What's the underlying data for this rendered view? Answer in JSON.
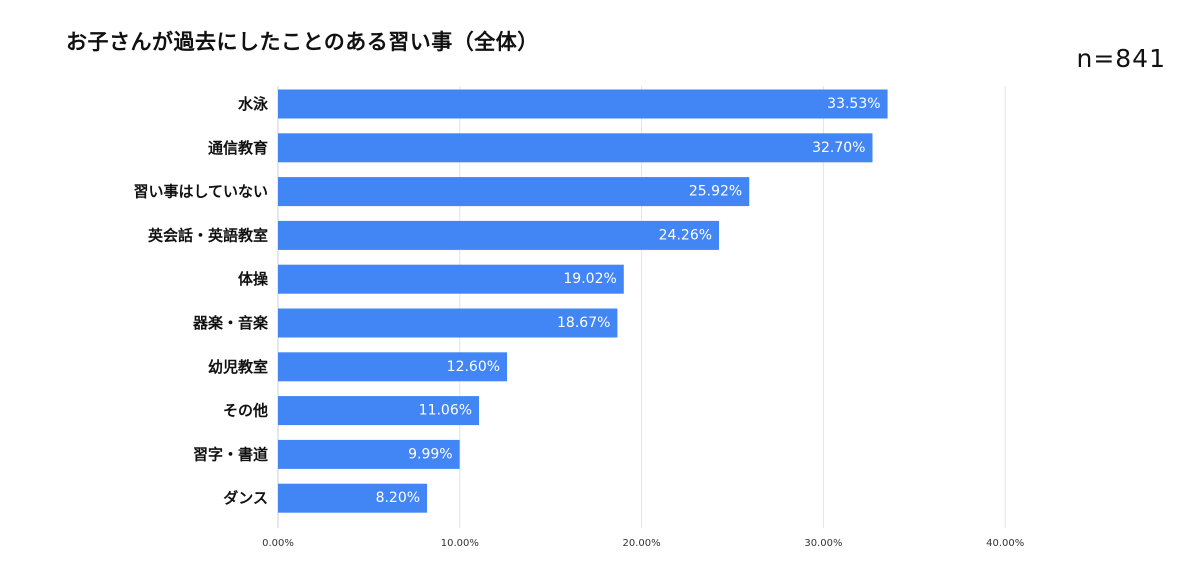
{
  "header": {
    "title": "お子さんが過去にしたことのある習い事（全体）",
    "sample_size": "n=841"
  },
  "colors": {
    "bar": "#4285f4",
    "grid": "#dde3f1",
    "value_text": "#ffffff",
    "label_text": "#111111"
  },
  "chart_data": {
    "type": "bar",
    "orientation": "horizontal",
    "title": "お子さんが過去にしたことのある習い事（全体）",
    "categories": [
      "水泳",
      "通信教育",
      "習い事はしていない",
      "英会話・英語教室",
      "体操",
      "器楽・音楽",
      "幼児教室",
      "その他",
      "習字・書道",
      "ダンス"
    ],
    "values": [
      33.53,
      32.7,
      25.92,
      24.26,
      19.02,
      18.67,
      12.6,
      11.06,
      9.99,
      8.2
    ],
    "value_labels": [
      "33.53%",
      "32.70%",
      "25.92%",
      "24.26%",
      "19.02%",
      "18.67%",
      "12.60%",
      "11.06%",
      "9.99%",
      "8.20%"
    ],
    "xlim": [
      0,
      40
    ],
    "xticks": [
      0,
      10,
      20,
      30,
      40
    ],
    "xtick_labels": [
      "0.00%",
      "10.00%",
      "20.00%",
      "30.00%",
      "40.00%"
    ],
    "xlabel": "",
    "ylabel": "",
    "grid": true
  }
}
